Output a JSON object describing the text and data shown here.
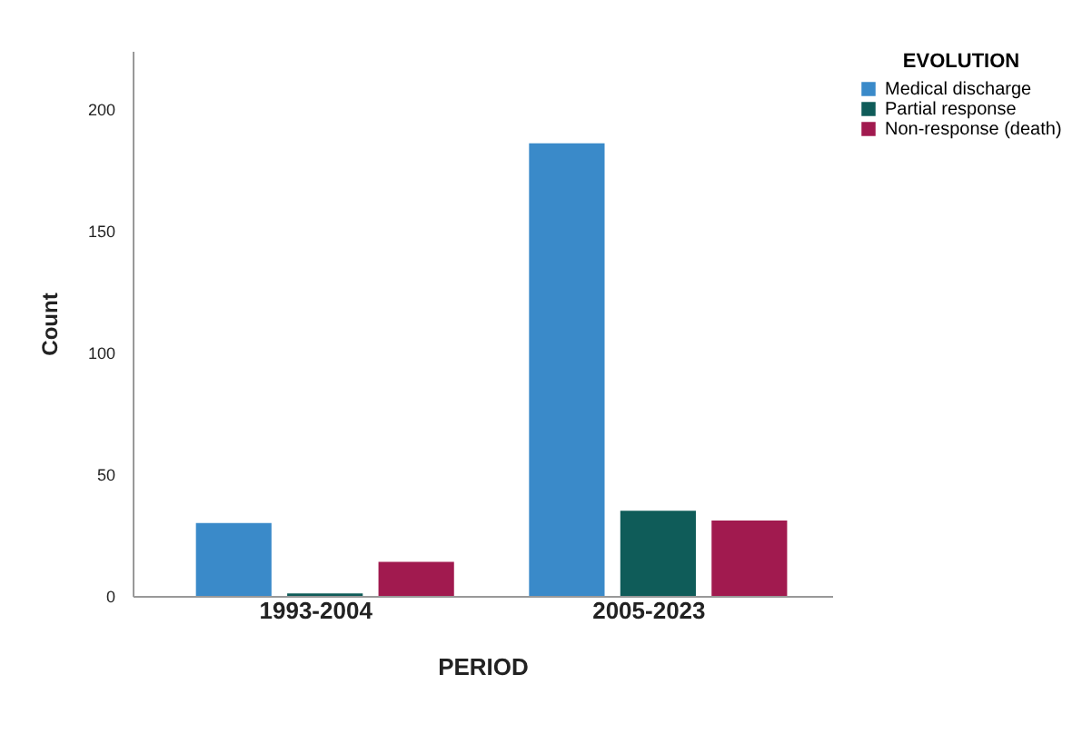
{
  "chart_data": {
    "type": "bar",
    "xlabel": "PERIOD",
    "ylabel": "Count",
    "legend_title": "EVOLUTION",
    "legend": "top right",
    "grid": false,
    "categories": [
      "1993-2004",
      "2005-2023"
    ],
    "series": [
      {
        "name": "Medical discharge",
        "color": "#3a8ac9",
        "values": [
          30,
          186
        ]
      },
      {
        "name": "Partial response",
        "color": "#0f5c59",
        "values": [
          1,
          35
        ]
      },
      {
        "name": "Non-response (death)",
        "color": "#a11a4f",
        "values": [
          14,
          31
        ]
      }
    ],
    "ylim": [
      0,
      224
    ],
    "yticks": [
      0,
      50,
      100,
      150,
      200
    ]
  }
}
